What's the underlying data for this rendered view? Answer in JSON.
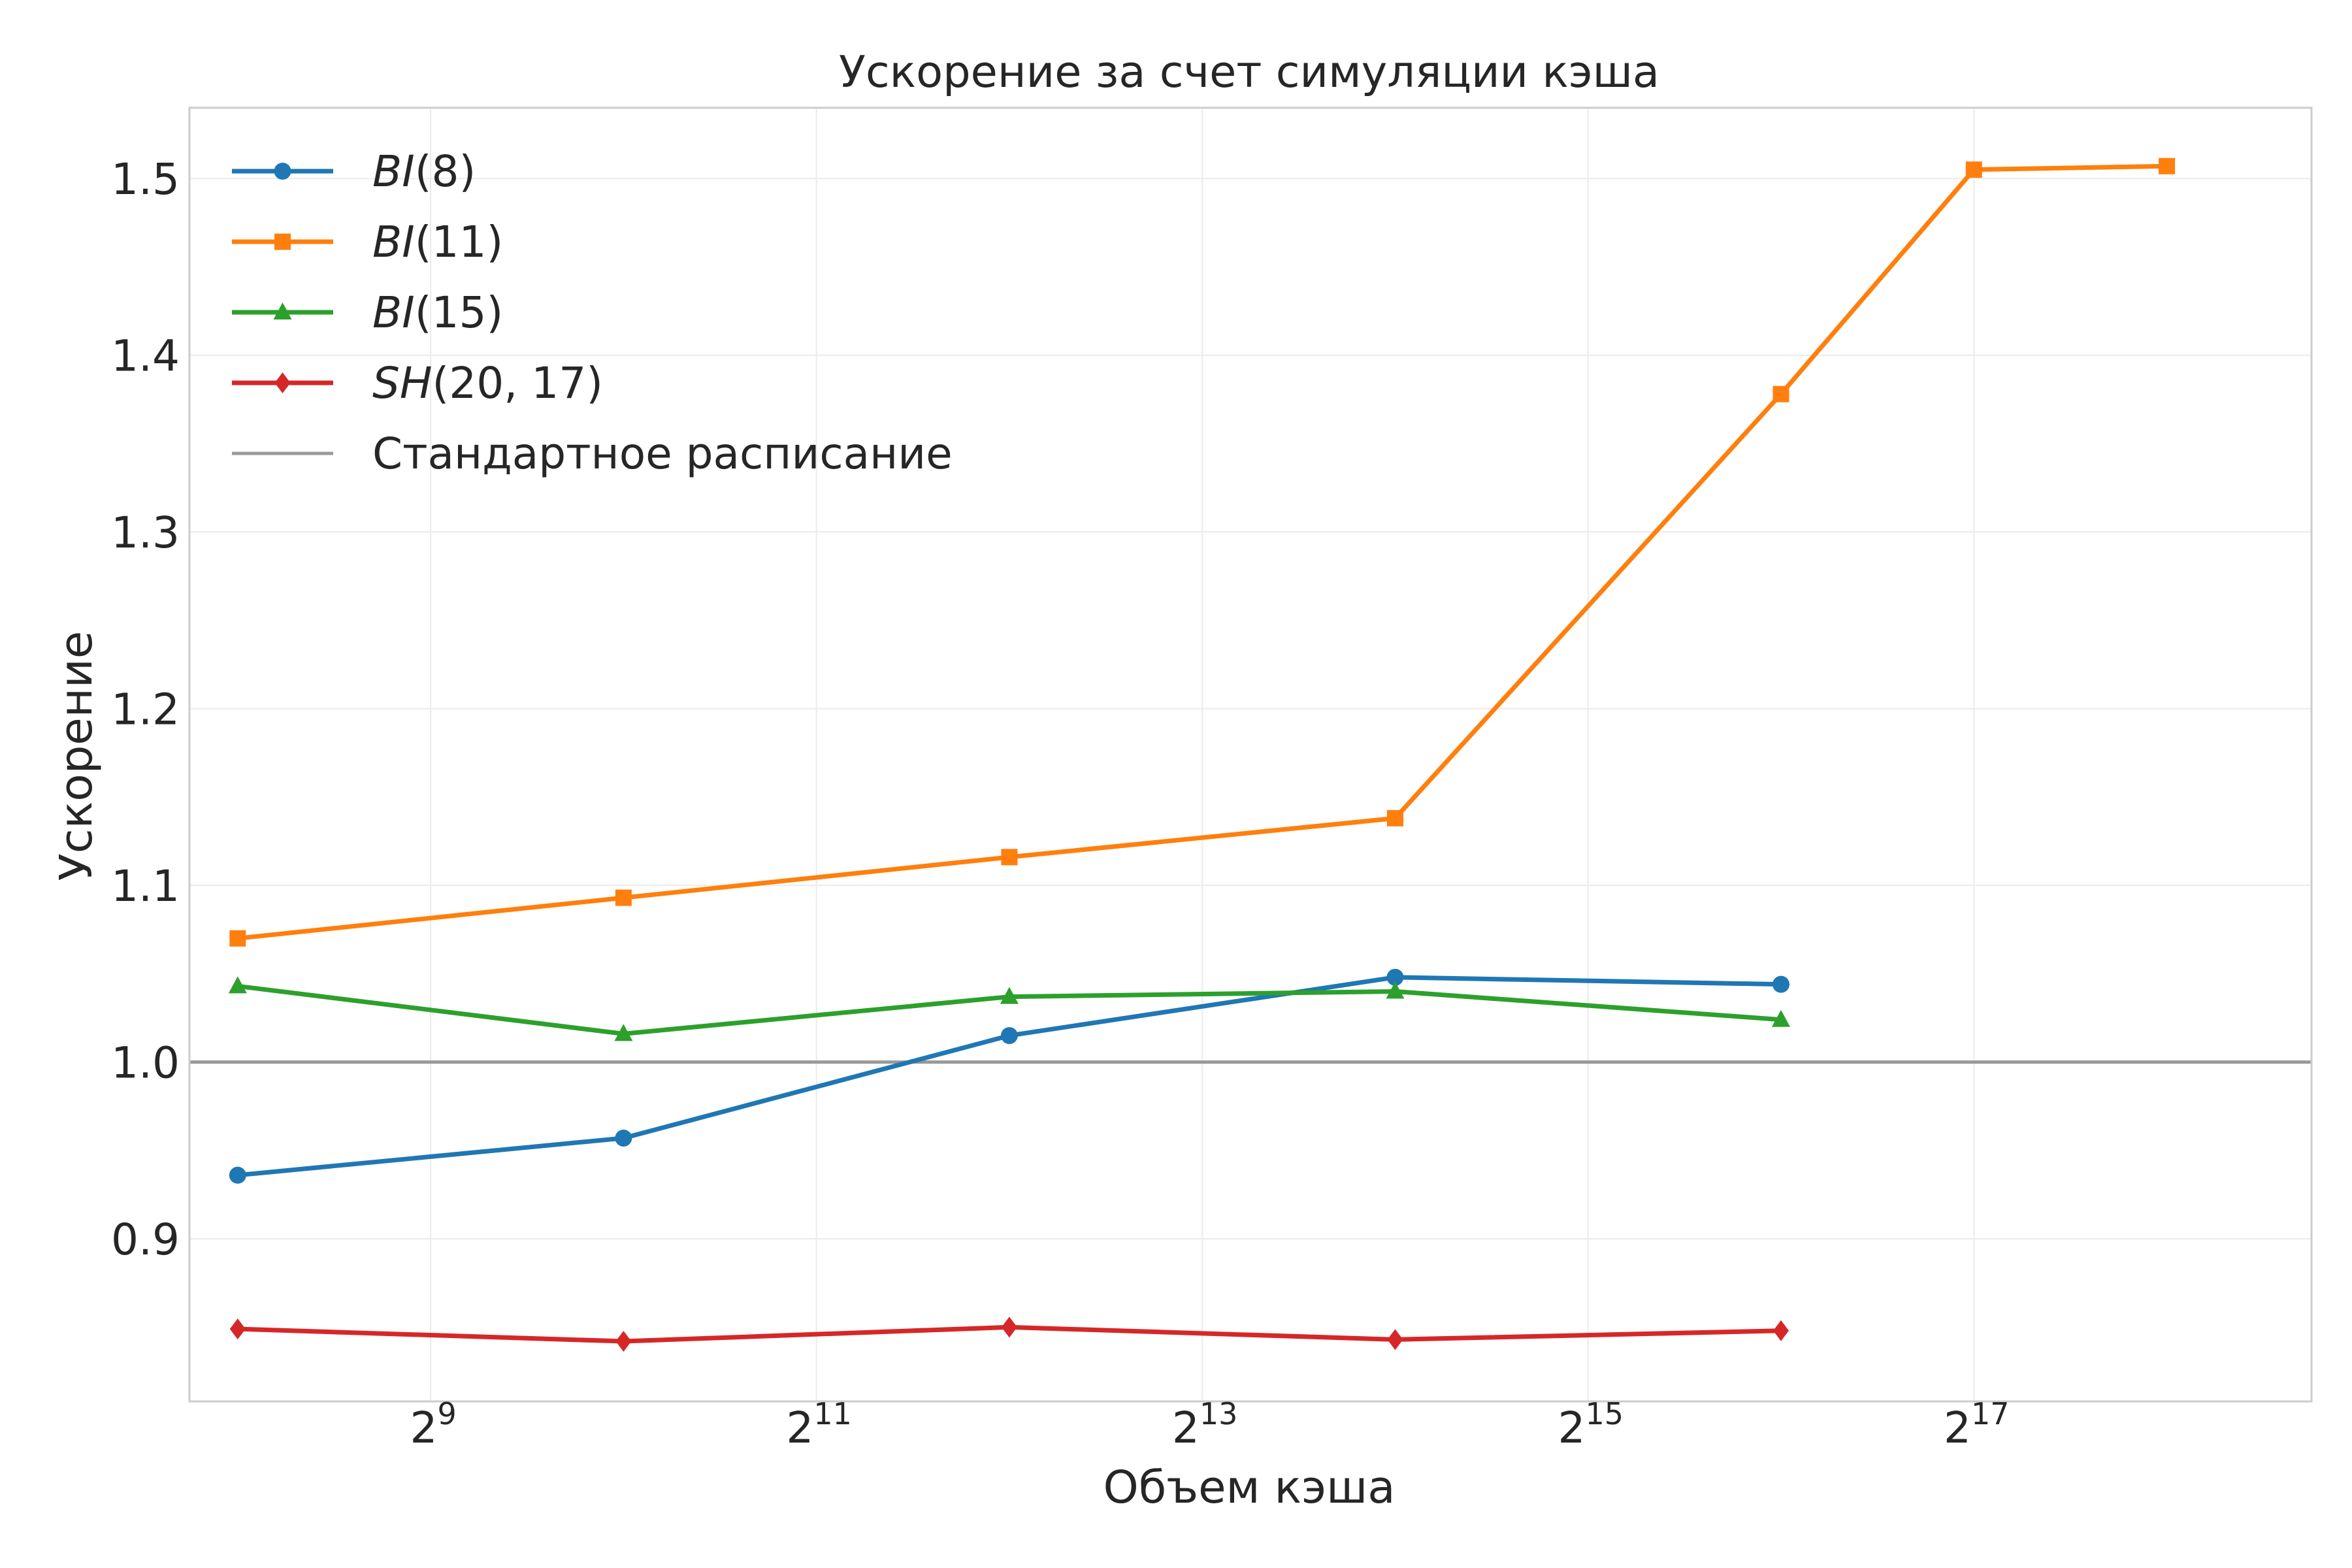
{
  "chart_data": {
    "type": "line",
    "title": "Ускорение за счет симуляции кэша",
    "xlabel": "Объем кэша",
    "ylabel": "Ускорение",
    "x_scale": "log2",
    "xlim": [
      7.75,
      18.75
    ],
    "ylim": [
      0.808,
      1.54
    ],
    "x_ticks": [
      {
        "value": 9,
        "base": "2",
        "exp": "9"
      },
      {
        "value": 11,
        "base": "2",
        "exp": "11"
      },
      {
        "value": 13,
        "base": "2",
        "exp": "13"
      },
      {
        "value": 15,
        "base": "2",
        "exp": "15"
      },
      {
        "value": 17,
        "base": "2",
        "exp": "17"
      }
    ],
    "y_ticks": [
      {
        "value": 0.9,
        "label": "0.9"
      },
      {
        "value": 1.0,
        "label": "1.0"
      },
      {
        "value": 1.1,
        "label": "1.1"
      },
      {
        "value": 1.2,
        "label": "1.2"
      },
      {
        "value": 1.3,
        "label": "1.3"
      },
      {
        "value": 1.4,
        "label": "1.4"
      },
      {
        "value": 1.5,
        "label": "1.5"
      }
    ],
    "grid": true,
    "legend_position": "top-left",
    "series": [
      {
        "name": "BI(8)",
        "name_italic": "BI",
        "name_rest": "(8)",
        "color": "#1f77b4",
        "marker": "circle",
        "x": [
          8,
          10,
          12,
          14,
          16
        ],
        "y": [
          0.936,
          0.957,
          1.015,
          1.048,
          1.044
        ]
      },
      {
        "name": "BI(11)",
        "name_italic": "BI",
        "name_rest": "(11)",
        "color": "#ff7f0e",
        "marker": "square",
        "x": [
          8,
          10,
          12,
          14,
          16,
          17,
          18
        ],
        "y": [
          1.07,
          1.093,
          1.116,
          1.138,
          1.378,
          1.505,
          1.507
        ]
      },
      {
        "name": "BI(15)",
        "name_italic": "BI",
        "name_rest": "(15)",
        "color": "#2ca02c",
        "marker": "triangle",
        "x": [
          8,
          10,
          12,
          14,
          16
        ],
        "y": [
          1.043,
          1.016,
          1.037,
          1.04,
          1.024
        ]
      },
      {
        "name": "SH(20, 17)",
        "name_italic": "SH",
        "name_rest": "(20, 17)",
        "color": "#d62728",
        "marker": "diamond",
        "x": [
          8,
          10,
          12,
          14,
          16
        ],
        "y": [
          0.849,
          0.842,
          0.85,
          0.843,
          0.848
        ]
      }
    ],
    "reference_line": {
      "name": "Стандартное расписание",
      "y": 1.0,
      "color": "#999999"
    }
  }
}
